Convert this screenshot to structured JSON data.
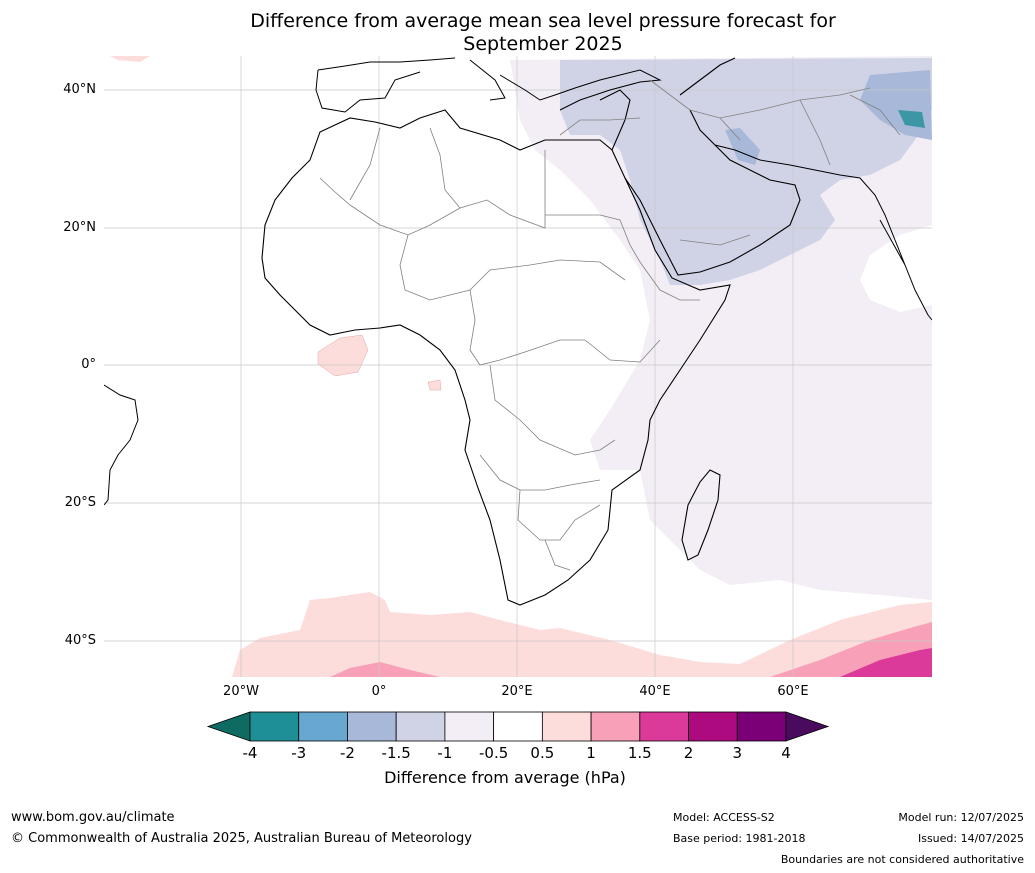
{
  "title_line1": "Difference from average mean sea level pressure forecast for",
  "title_line2": "September 2025",
  "lat_labels": [
    "40°N",
    "20°N",
    "0°",
    "20°S",
    "40°S"
  ],
  "lon_labels": [
    "20°W",
    "0°",
    "20°E",
    "40°E",
    "60°E"
  ],
  "colorbar": {
    "label": "Difference from average (hPa)",
    "ticks": [
      "-4",
      "-3",
      "-2",
      "-1.5",
      "-1",
      "-0.5",
      "0.5",
      "1",
      "1.5",
      "2",
      "3",
      "4"
    ],
    "colors": [
      "#0e6b64",
      "#1e8f96",
      "#68a8d0",
      "#a8b8d8",
      "#d0d3e6",
      "#f3eef6",
      "#ffffff",
      "#fddcdc",
      "#f8a0b8",
      "#dc3a9a",
      "#ad0a80",
      "#7b0078",
      "#4a0a5e"
    ]
  },
  "footer": {
    "url": "www.bom.gov.au/climate",
    "copyright": "© Commonwealth of Australia 2025, Australian Bureau of Meteorology",
    "model": "Model: ACCESS-S2",
    "base_period": "Base period: 1981-2018",
    "model_run": "Model run: 12/07/2025",
    "issued": "Issued: 14/07/2025",
    "disclaimer": "Boundaries are not considered authoritative"
  }
}
